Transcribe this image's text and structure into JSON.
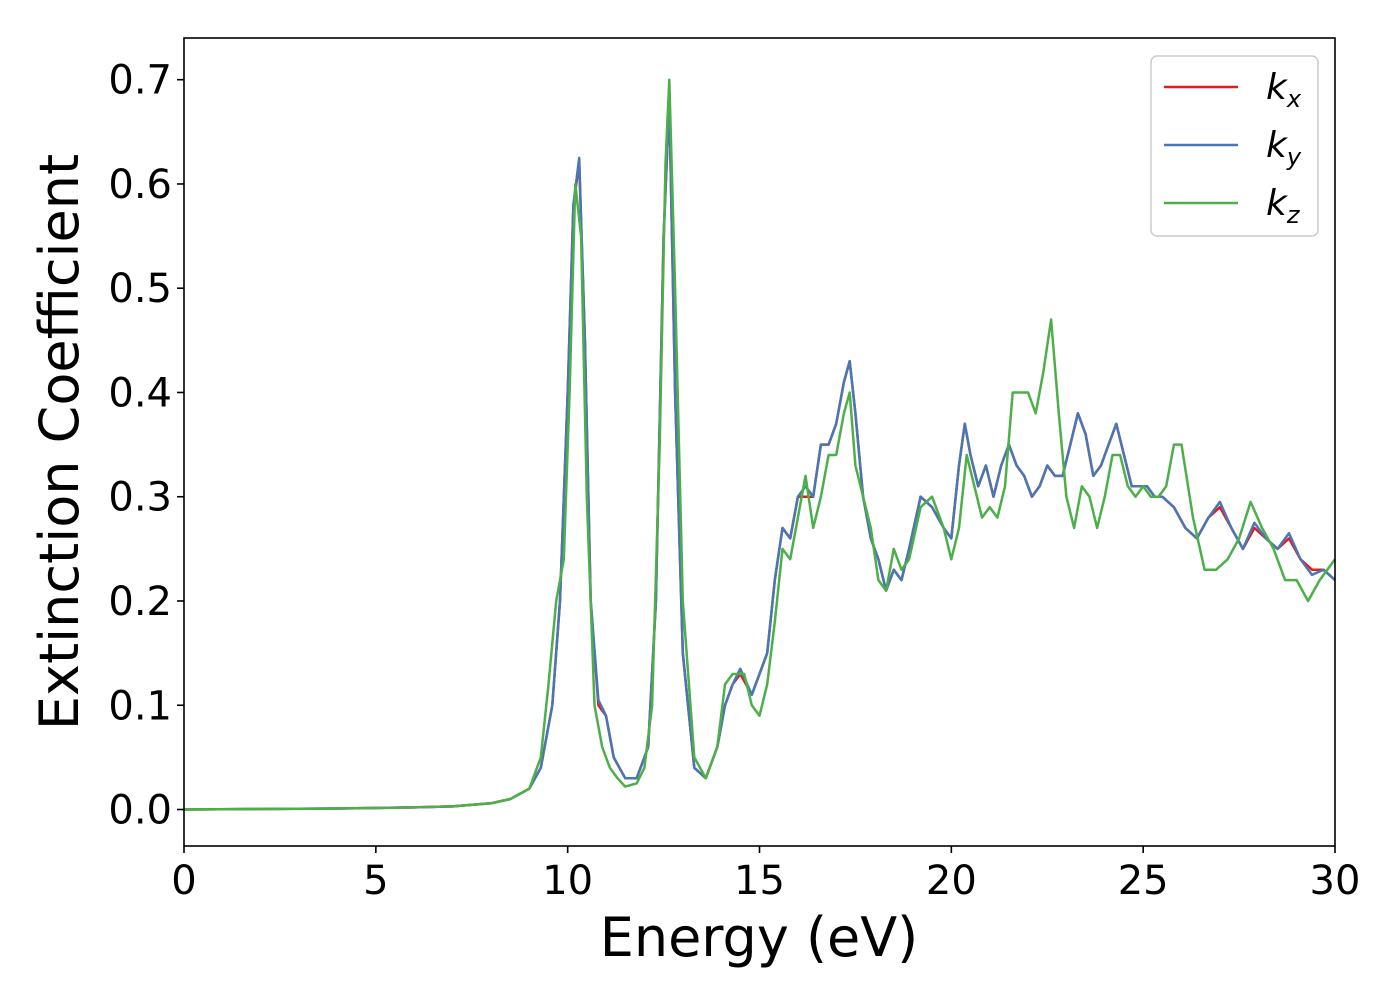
{
  "chart_data": {
    "type": "line",
    "xlabel": "Energy (eV)",
    "ylabel": "Extinction Coefficient",
    "xlim": [
      0,
      30
    ],
    "ylim": [
      -0.035,
      0.74
    ],
    "xticks": [
      0,
      5,
      10,
      15,
      20,
      25,
      30
    ],
    "xtick_labels": [
      "0",
      "5",
      "10",
      "15",
      "20",
      "25",
      "30"
    ],
    "yticks": [
      0.0,
      0.1,
      0.2,
      0.3,
      0.4,
      0.5,
      0.6,
      0.7
    ],
    "ytick_labels": [
      "0.0",
      "0.1",
      "0.2",
      "0.3",
      "0.4",
      "0.5",
      "0.6",
      "0.7"
    ],
    "grid": false,
    "legend_position": "top-right",
    "series": [
      {
        "name": "k_x",
        "label_main": "k",
        "label_sub": "x",
        "color": "#e41a1c",
        "x": [
          0,
          2,
          4,
          6,
          7,
          8,
          8.5,
          9,
          9.3,
          9.6,
          9.8,
          10.0,
          10.15,
          10.3,
          10.45,
          10.6,
          10.8,
          11.0,
          11.2,
          11.5,
          11.8,
          12.1,
          12.3,
          12.5,
          12.65,
          12.8,
          13.0,
          13.3,
          13.6,
          13.9,
          14.1,
          14.3,
          14.5,
          14.8,
          15.2,
          15.4,
          15.6,
          15.8,
          16.0,
          16.2,
          16.4,
          16.6,
          16.8,
          17.0,
          17.2,
          17.35,
          17.5,
          17.7,
          17.9,
          18.1,
          18.3,
          18.5,
          18.7,
          18.9,
          19.2,
          19.5,
          19.8,
          20.0,
          20.2,
          20.35,
          20.5,
          20.7,
          20.9,
          21.1,
          21.3,
          21.5,
          21.7,
          21.9,
          22.1,
          22.3,
          22.5,
          22.7,
          22.9,
          23.1,
          23.3,
          23.5,
          23.7,
          23.9,
          24.1,
          24.3,
          24.5,
          24.7,
          24.9,
          25.1,
          25.3,
          25.5,
          25.8,
          26.1,
          26.4,
          26.7,
          27.0,
          27.3,
          27.6,
          27.9,
          28.2,
          28.5,
          28.8,
          29.1,
          29.4,
          29.7,
          30.0
        ],
        "y": [
          0.0,
          0.0005,
          0.001,
          0.002,
          0.003,
          0.006,
          0.01,
          0.02,
          0.04,
          0.1,
          0.2,
          0.4,
          0.58,
          0.62,
          0.45,
          0.2,
          0.1,
          0.09,
          0.05,
          0.03,
          0.03,
          0.06,
          0.2,
          0.55,
          0.68,
          0.4,
          0.15,
          0.04,
          0.03,
          0.06,
          0.1,
          0.12,
          0.13,
          0.11,
          0.15,
          0.22,
          0.27,
          0.26,
          0.3,
          0.3,
          0.3,
          0.35,
          0.35,
          0.37,
          0.41,
          0.43,
          0.38,
          0.3,
          0.26,
          0.24,
          0.21,
          0.23,
          0.22,
          0.25,
          0.3,
          0.29,
          0.27,
          0.26,
          0.33,
          0.37,
          0.34,
          0.31,
          0.33,
          0.3,
          0.33,
          0.35,
          0.33,
          0.32,
          0.3,
          0.31,
          0.33,
          0.32,
          0.32,
          0.35,
          0.38,
          0.36,
          0.32,
          0.33,
          0.35,
          0.37,
          0.34,
          0.31,
          0.31,
          0.31,
          0.3,
          0.3,
          0.29,
          0.27,
          0.26,
          0.28,
          0.29,
          0.27,
          0.25,
          0.27,
          0.26,
          0.25,
          0.26,
          0.24,
          0.23,
          0.23,
          0.22
        ]
      },
      {
        "name": "k_y",
        "label_main": "k",
        "label_sub": "y",
        "color": "#4878b4",
        "x": [
          0,
          2,
          4,
          6,
          7,
          8,
          8.5,
          9,
          9.3,
          9.6,
          9.8,
          10.0,
          10.15,
          10.3,
          10.45,
          10.6,
          10.8,
          11.0,
          11.2,
          11.5,
          11.8,
          12.1,
          12.3,
          12.5,
          12.65,
          12.8,
          13.0,
          13.3,
          13.6,
          13.9,
          14.1,
          14.3,
          14.5,
          14.8,
          15.2,
          15.4,
          15.6,
          15.8,
          16.0,
          16.2,
          16.4,
          16.6,
          16.8,
          17.0,
          17.2,
          17.35,
          17.5,
          17.7,
          17.9,
          18.1,
          18.3,
          18.5,
          18.7,
          18.9,
          19.2,
          19.5,
          19.8,
          20.0,
          20.2,
          20.35,
          20.5,
          20.7,
          20.9,
          21.1,
          21.3,
          21.5,
          21.7,
          21.9,
          22.1,
          22.3,
          22.5,
          22.7,
          22.9,
          23.1,
          23.3,
          23.5,
          23.7,
          23.9,
          24.1,
          24.3,
          24.5,
          24.7,
          24.9,
          25.1,
          25.3,
          25.5,
          25.8,
          26.1,
          26.4,
          26.7,
          27.0,
          27.3,
          27.6,
          27.9,
          28.2,
          28.5,
          28.8,
          29.1,
          29.4,
          29.7,
          30.0
        ],
        "y": [
          0.0,
          0.0005,
          0.001,
          0.002,
          0.003,
          0.006,
          0.01,
          0.02,
          0.04,
          0.1,
          0.2,
          0.4,
          0.58,
          0.625,
          0.45,
          0.2,
          0.105,
          0.09,
          0.05,
          0.03,
          0.03,
          0.06,
          0.2,
          0.55,
          0.68,
          0.4,
          0.15,
          0.04,
          0.03,
          0.06,
          0.1,
          0.12,
          0.135,
          0.11,
          0.15,
          0.22,
          0.27,
          0.26,
          0.3,
          0.31,
          0.3,
          0.35,
          0.35,
          0.37,
          0.41,
          0.43,
          0.38,
          0.3,
          0.26,
          0.24,
          0.21,
          0.23,
          0.22,
          0.25,
          0.3,
          0.29,
          0.27,
          0.26,
          0.33,
          0.37,
          0.34,
          0.31,
          0.33,
          0.3,
          0.33,
          0.35,
          0.33,
          0.32,
          0.3,
          0.31,
          0.33,
          0.32,
          0.32,
          0.35,
          0.38,
          0.36,
          0.32,
          0.33,
          0.35,
          0.37,
          0.34,
          0.31,
          0.31,
          0.31,
          0.3,
          0.3,
          0.29,
          0.27,
          0.26,
          0.28,
          0.295,
          0.27,
          0.25,
          0.275,
          0.26,
          0.25,
          0.265,
          0.24,
          0.225,
          0.23,
          0.22
        ]
      },
      {
        "name": "k_z",
        "label_main": "k",
        "label_sub": "z",
        "color": "#4daf4a",
        "x": [
          0,
          2,
          4,
          6,
          7,
          8,
          8.5,
          9,
          9.3,
          9.5,
          9.7,
          9.9,
          10.05,
          10.2,
          10.35,
          10.5,
          10.7,
          10.9,
          11.1,
          11.3,
          11.5,
          11.8,
          12.0,
          12.2,
          12.4,
          12.55,
          12.65,
          12.8,
          13.0,
          13.3,
          13.6,
          13.9,
          14.1,
          14.3,
          14.6,
          14.8,
          15.0,
          15.2,
          15.4,
          15.6,
          15.8,
          16.0,
          16.2,
          16.4,
          16.6,
          16.8,
          17.0,
          17.2,
          17.35,
          17.5,
          17.7,
          17.9,
          18.1,
          18.3,
          18.5,
          18.7,
          18.9,
          19.2,
          19.5,
          19.8,
          20.0,
          20.2,
          20.4,
          20.6,
          20.8,
          21.0,
          21.2,
          21.4,
          21.6,
          21.8,
          22.0,
          22.2,
          22.4,
          22.6,
          22.8,
          23.0,
          23.2,
          23.4,
          23.6,
          23.8,
          24.0,
          24.2,
          24.4,
          24.6,
          24.8,
          25.0,
          25.2,
          25.4,
          25.6,
          25.8,
          26.0,
          26.3,
          26.6,
          26.9,
          27.2,
          27.5,
          27.8,
          28.1,
          28.4,
          28.7,
          29.0,
          29.3,
          29.6,
          30.0
        ],
        "y": [
          0.0,
          0.0005,
          0.001,
          0.002,
          0.003,
          0.006,
          0.01,
          0.02,
          0.05,
          0.12,
          0.2,
          0.24,
          0.4,
          0.6,
          0.55,
          0.3,
          0.1,
          0.06,
          0.04,
          0.03,
          0.022,
          0.025,
          0.04,
          0.1,
          0.35,
          0.62,
          0.7,
          0.5,
          0.2,
          0.05,
          0.03,
          0.06,
          0.12,
          0.13,
          0.13,
          0.1,
          0.09,
          0.12,
          0.18,
          0.25,
          0.24,
          0.28,
          0.32,
          0.27,
          0.3,
          0.34,
          0.34,
          0.38,
          0.4,
          0.33,
          0.3,
          0.27,
          0.22,
          0.21,
          0.25,
          0.23,
          0.24,
          0.29,
          0.3,
          0.27,
          0.24,
          0.27,
          0.34,
          0.31,
          0.28,
          0.29,
          0.28,
          0.31,
          0.4,
          0.4,
          0.4,
          0.38,
          0.42,
          0.47,
          0.38,
          0.3,
          0.27,
          0.31,
          0.3,
          0.27,
          0.3,
          0.34,
          0.34,
          0.31,
          0.3,
          0.31,
          0.3,
          0.3,
          0.31,
          0.35,
          0.35,
          0.28,
          0.23,
          0.23,
          0.24,
          0.26,
          0.295,
          0.27,
          0.25,
          0.22,
          0.22,
          0.2,
          0.22,
          0.24
        ]
      }
    ]
  }
}
